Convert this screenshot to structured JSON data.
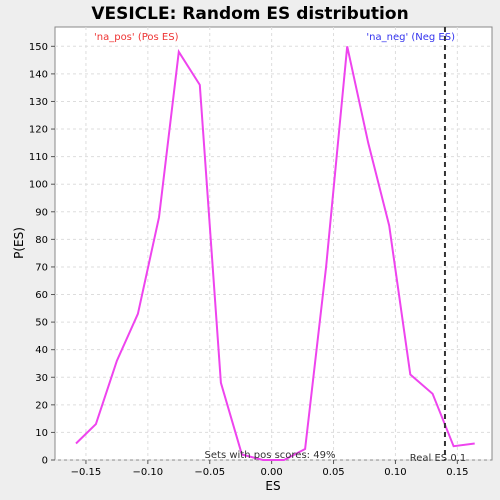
{
  "chart_data": {
    "type": "line",
    "title": "VESICLE: Random ES distribution",
    "xlabel": "ES",
    "ylabel": "P(ES)",
    "xlim": [
      -0.175,
      0.178
    ],
    "ylim": [
      0,
      157
    ],
    "xticks": [
      -0.15,
      -0.1,
      -0.05,
      0.0,
      0.05,
      0.1,
      0.15
    ],
    "xtick_labels": [
      "−0.15",
      "−0.10",
      "−0.05",
      "0.00",
      "0.05",
      "0.10",
      "0.15"
    ],
    "yticks": [
      0,
      10,
      20,
      30,
      40,
      50,
      60,
      70,
      80,
      90,
      100,
      110,
      120,
      130,
      140,
      150
    ],
    "ytick_labels": [
      "0",
      "10",
      "20",
      "30",
      "40",
      "50",
      "60",
      "70",
      "80",
      "90",
      "100",
      "110",
      "120",
      "130",
      "140",
      "150"
    ],
    "grid": true,
    "series": [
      {
        "color": "#ee44ee",
        "x": [
          -0.158,
          -0.142,
          -0.125,
          -0.108,
          -0.091,
          -0.075,
          -0.058,
          -0.041,
          -0.024,
          -0.007,
          0.01,
          0.027,
          0.044,
          0.061,
          0.078,
          0.095,
          0.112,
          0.13,
          0.147,
          0.164
        ],
        "y": [
          6,
          13,
          36,
          53,
          88,
          148,
          136,
          28,
          2,
          0,
          0,
          4,
          70,
          150,
          115,
          85,
          31,
          24,
          5,
          6
        ]
      }
    ],
    "reference_line": {
      "x": 0.14,
      "label": "Real ES 0.1",
      "color": "#333333"
    },
    "annotations": [
      {
        "text": "'na_pos' (Pos ES)",
        "color": "#ee3333"
      },
      {
        "text": "'na_neg' (Neg ES)",
        "color": "#3333ee"
      },
      {
        "text": "Sets with pos scores: 49%",
        "color": "#333333"
      }
    ]
  }
}
